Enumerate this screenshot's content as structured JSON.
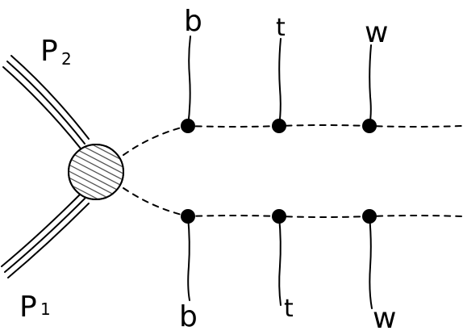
{
  "diagram": {
    "incoming": [
      {
        "name": "P",
        "sub": "2"
      },
      {
        "name": "P",
        "sub": "1"
      }
    ],
    "top_row_labels": [
      "b",
      "t",
      "w"
    ],
    "bottom_row_labels": [
      "b",
      "t",
      "w"
    ]
  }
}
